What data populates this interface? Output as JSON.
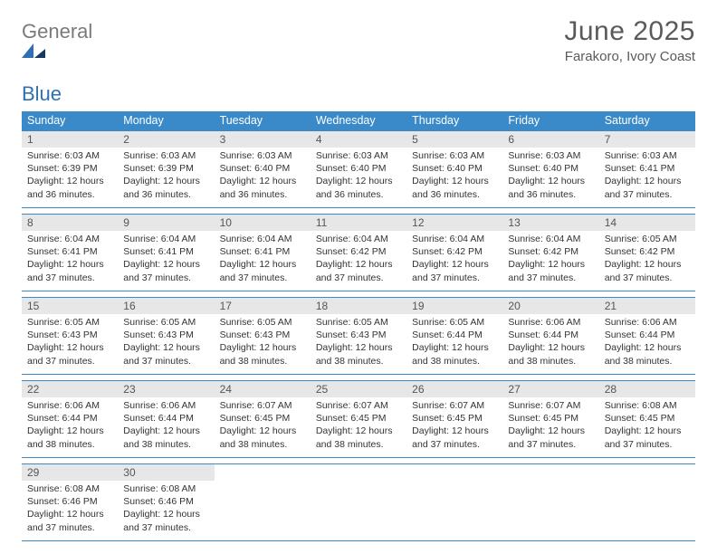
{
  "brand": {
    "word1": "General",
    "word2": "Blue"
  },
  "title": "June 2025",
  "location": "Farakoro, Ivory Coast",
  "colors": {
    "header_bg": "#3a8ac9",
    "header_fg": "#ffffff",
    "daynum_bg": "#e7e7e7",
    "rule": "#3a8ac9",
    "text": "#333333",
    "logo_gray": "#7a7a7a",
    "logo_blue": "#2f6fb3"
  },
  "dow": [
    "Sunday",
    "Monday",
    "Tuesday",
    "Wednesday",
    "Thursday",
    "Friday",
    "Saturday"
  ],
  "days": [
    {
      "n": 1,
      "sr": "6:03 AM",
      "ss": "6:39 PM",
      "dl": "12 hours and 36 minutes."
    },
    {
      "n": 2,
      "sr": "6:03 AM",
      "ss": "6:39 PM",
      "dl": "12 hours and 36 minutes."
    },
    {
      "n": 3,
      "sr": "6:03 AM",
      "ss": "6:40 PM",
      "dl": "12 hours and 36 minutes."
    },
    {
      "n": 4,
      "sr": "6:03 AM",
      "ss": "6:40 PM",
      "dl": "12 hours and 36 minutes."
    },
    {
      "n": 5,
      "sr": "6:03 AM",
      "ss": "6:40 PM",
      "dl": "12 hours and 36 minutes."
    },
    {
      "n": 6,
      "sr": "6:03 AM",
      "ss": "6:40 PM",
      "dl": "12 hours and 36 minutes."
    },
    {
      "n": 7,
      "sr": "6:03 AM",
      "ss": "6:41 PM",
      "dl": "12 hours and 37 minutes."
    },
    {
      "n": 8,
      "sr": "6:04 AM",
      "ss": "6:41 PM",
      "dl": "12 hours and 37 minutes."
    },
    {
      "n": 9,
      "sr": "6:04 AM",
      "ss": "6:41 PM",
      "dl": "12 hours and 37 minutes."
    },
    {
      "n": 10,
      "sr": "6:04 AM",
      "ss": "6:41 PM",
      "dl": "12 hours and 37 minutes."
    },
    {
      "n": 11,
      "sr": "6:04 AM",
      "ss": "6:42 PM",
      "dl": "12 hours and 37 minutes."
    },
    {
      "n": 12,
      "sr": "6:04 AM",
      "ss": "6:42 PM",
      "dl": "12 hours and 37 minutes."
    },
    {
      "n": 13,
      "sr": "6:04 AM",
      "ss": "6:42 PM",
      "dl": "12 hours and 37 minutes."
    },
    {
      "n": 14,
      "sr": "6:05 AM",
      "ss": "6:42 PM",
      "dl": "12 hours and 37 minutes."
    },
    {
      "n": 15,
      "sr": "6:05 AM",
      "ss": "6:43 PM",
      "dl": "12 hours and 37 minutes."
    },
    {
      "n": 16,
      "sr": "6:05 AM",
      "ss": "6:43 PM",
      "dl": "12 hours and 37 minutes."
    },
    {
      "n": 17,
      "sr": "6:05 AM",
      "ss": "6:43 PM",
      "dl": "12 hours and 38 minutes."
    },
    {
      "n": 18,
      "sr": "6:05 AM",
      "ss": "6:43 PM",
      "dl": "12 hours and 38 minutes."
    },
    {
      "n": 19,
      "sr": "6:05 AM",
      "ss": "6:44 PM",
      "dl": "12 hours and 38 minutes."
    },
    {
      "n": 20,
      "sr": "6:06 AM",
      "ss": "6:44 PM",
      "dl": "12 hours and 38 minutes."
    },
    {
      "n": 21,
      "sr": "6:06 AM",
      "ss": "6:44 PM",
      "dl": "12 hours and 38 minutes."
    },
    {
      "n": 22,
      "sr": "6:06 AM",
      "ss": "6:44 PM",
      "dl": "12 hours and 38 minutes."
    },
    {
      "n": 23,
      "sr": "6:06 AM",
      "ss": "6:44 PM",
      "dl": "12 hours and 38 minutes."
    },
    {
      "n": 24,
      "sr": "6:07 AM",
      "ss": "6:45 PM",
      "dl": "12 hours and 38 minutes."
    },
    {
      "n": 25,
      "sr": "6:07 AM",
      "ss": "6:45 PM",
      "dl": "12 hours and 38 minutes."
    },
    {
      "n": 26,
      "sr": "6:07 AM",
      "ss": "6:45 PM",
      "dl": "12 hours and 37 minutes."
    },
    {
      "n": 27,
      "sr": "6:07 AM",
      "ss": "6:45 PM",
      "dl": "12 hours and 37 minutes."
    },
    {
      "n": 28,
      "sr": "6:08 AM",
      "ss": "6:45 PM",
      "dl": "12 hours and 37 minutes."
    },
    {
      "n": 29,
      "sr": "6:08 AM",
      "ss": "6:46 PM",
      "dl": "12 hours and 37 minutes."
    },
    {
      "n": 30,
      "sr": "6:08 AM",
      "ss": "6:46 PM",
      "dl": "12 hours and 37 minutes."
    }
  ],
  "labels": {
    "sunrise": "Sunrise:",
    "sunset": "Sunset:",
    "daylight": "Daylight:"
  },
  "layout": {
    "first_day_column": 0,
    "columns": 7
  }
}
